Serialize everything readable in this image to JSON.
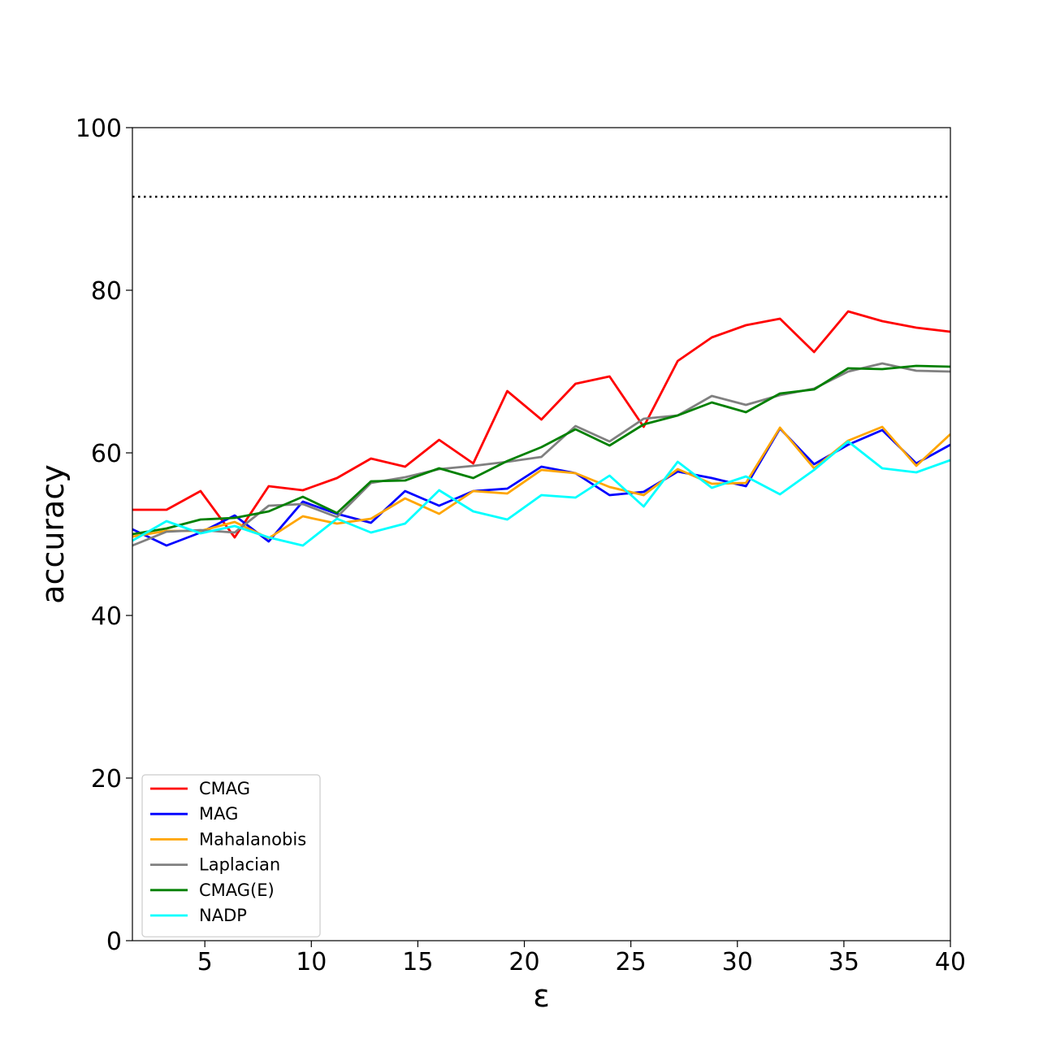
{
  "chart_data": {
    "type": "line",
    "title": "",
    "xlabel": "ε",
    "ylabel": "accuracy",
    "xlim": [
      1.6,
      40
    ],
    "ylim": [
      0,
      100
    ],
    "xticks": [
      5,
      10,
      15,
      20,
      25,
      30,
      35,
      40
    ],
    "yticks": [
      0,
      20,
      40,
      60,
      80,
      100
    ],
    "grid": false,
    "legend_position": "lower-left",
    "x": [
      1.6,
      3.2,
      4.8,
      6.4,
      8.0,
      9.6,
      11.2,
      12.8,
      14.4,
      16.0,
      17.6,
      19.2,
      20.8,
      22.4,
      24.0,
      25.6,
      27.2,
      28.8,
      30.4,
      32.0,
      33.6,
      35.2,
      36.8,
      38.4,
      40.0
    ],
    "reference_line": {
      "y": 91.5,
      "style": "dotted",
      "color": "#000000"
    },
    "series": [
      {
        "name": "CMAG",
        "color": "#ff0000",
        "values": [
          53.0,
          53.0,
          55.3,
          49.6,
          55.9,
          55.4,
          56.9,
          59.3,
          58.3,
          61.6,
          58.7,
          67.6,
          64.1,
          68.5,
          69.4,
          63.2,
          71.3,
          74.2,
          75.7,
          76.5,
          72.4,
          77.4,
          76.2,
          75.4,
          74.9
        ]
      },
      {
        "name": "MAG",
        "color": "#0000ff",
        "values": [
          50.6,
          48.6,
          50.2,
          52.3,
          49.1,
          54.0,
          52.5,
          51.4,
          55.3,
          53.5,
          55.3,
          55.6,
          58.3,
          57.5,
          54.8,
          55.2,
          57.7,
          56.9,
          55.9,
          63.0,
          58.6,
          61.0,
          62.8,
          58.7,
          61.0
        ]
      },
      {
        "name": "Mahalanobis",
        "color": "#ffa500",
        "values": [
          49.7,
          50.4,
          50.4,
          51.5,
          49.5,
          52.2,
          51.3,
          51.9,
          54.4,
          52.5,
          55.3,
          55.0,
          57.9,
          57.5,
          55.8,
          54.8,
          58.0,
          56.2,
          56.3,
          63.1,
          58.1,
          61.5,
          63.2,
          58.4,
          62.3
        ]
      },
      {
        "name": "Laplacian",
        "color": "#808080",
        "values": [
          48.6,
          50.3,
          50.5,
          50.2,
          53.5,
          53.7,
          52.1,
          56.3,
          57.0,
          58.0,
          58.4,
          58.9,
          59.5,
          63.3,
          61.4,
          64.2,
          64.6,
          67.0,
          65.9,
          67.1,
          67.9,
          70.0,
          71.0,
          70.1,
          70.0
        ]
      },
      {
        "name": "CMAG(E)",
        "color": "#008000",
        "values": [
          50.0,
          50.7,
          51.8,
          52.0,
          52.8,
          54.6,
          52.6,
          56.5,
          56.6,
          58.1,
          56.9,
          59.0,
          60.7,
          62.9,
          60.9,
          63.5,
          64.6,
          66.2,
          65.0,
          67.3,
          67.8,
          70.4,
          70.3,
          70.7,
          70.6
        ]
      },
      {
        "name": "NADP",
        "color": "#00ffff",
        "values": [
          49.2,
          51.6,
          50.1,
          51.0,
          49.6,
          48.6,
          51.9,
          50.2,
          51.3,
          55.4,
          52.8,
          51.8,
          54.8,
          54.5,
          57.2,
          53.4,
          58.9,
          55.7,
          57.1,
          54.9,
          57.9,
          61.4,
          58.1,
          57.6,
          59.1
        ]
      }
    ]
  }
}
